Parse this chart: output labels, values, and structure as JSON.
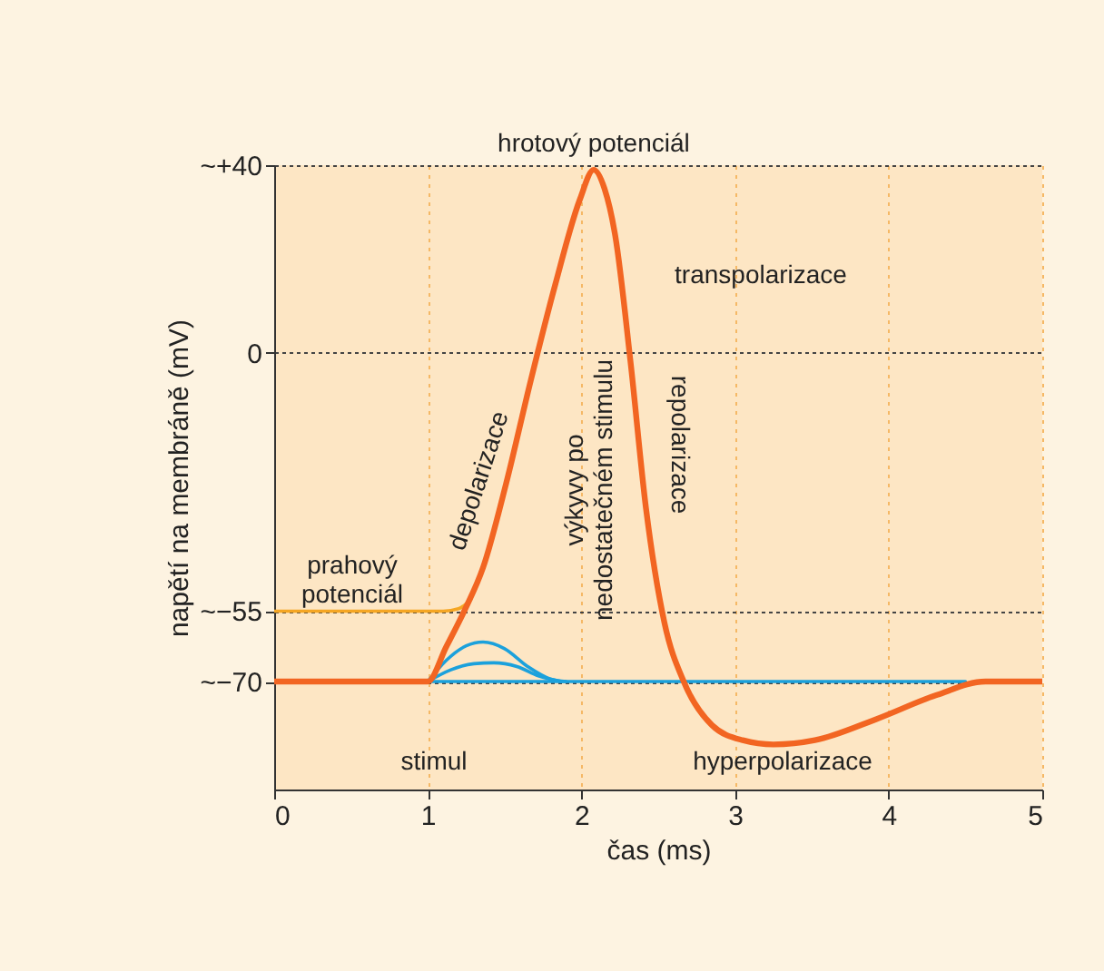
{
  "chart_data": {
    "type": "line",
    "xlabel": "čas (ms)",
    "ylabel": "napětí na membráně (mV)",
    "xlim": [
      0,
      5
    ],
    "xticks": [
      0,
      1,
      2,
      3,
      4,
      5
    ],
    "ylim": [
      -93,
      40
    ],
    "yticks": [
      {
        "value": -70,
        "label": "~−70"
      },
      {
        "value": -55,
        "label": "~−55"
      },
      0,
      {
        "value": 40,
        "label": "~+40"
      }
    ],
    "grid": true,
    "marker": "none",
    "line_style": "solid",
    "series": [
      {
        "color": "#1ba1dc",
        "x": [
          1,
          4.5
        ],
        "values": [
          -70,
          -70
        ]
      },
      {
        "color": "#1ba1dc",
        "x": [
          1,
          1.15,
          1.3,
          1.43,
          1.58,
          1.72,
          1.87
        ],
        "values": [
          -70,
          -67.5,
          -66.2,
          -66,
          -66.8,
          -68.8,
          -70
        ]
      },
      {
        "color": "#1ba1dc",
        "x": [
          1,
          1.12,
          1.25,
          1.36,
          1.5,
          1.65,
          1.8,
          1.9
        ],
        "values": [
          -70,
          -65.5,
          -62.4,
          -61.6,
          -63,
          -66.8,
          -69.5,
          -70
        ]
      },
      {
        "color": "#f5a623",
        "x": [
          0,
          1.1,
          1.2,
          1.28
        ],
        "values": [
          -55,
          -55,
          -54.5,
          -52.5
        ]
      },
      {
        "color": "#f26522",
        "x": [
          0,
          1,
          1.12,
          1.24,
          1.36,
          1.51,
          1.67,
          1.83,
          1.99,
          2.08,
          2.15,
          2.22,
          2.32,
          2.42,
          2.54,
          2.67,
          2.85,
          3.05,
          3.25,
          3.52,
          3.92,
          4.31,
          4.63,
          5
        ],
        "values": [
          -70,
          -70,
          -62.6,
          -54.8,
          -45.7,
          -27.8,
          -5.9,
          14.6,
          32.7,
          39,
          35,
          25,
          -2,
          -33,
          -57.4,
          -70.3,
          -79.3,
          -82.5,
          -83.4,
          -82.5,
          -78,
          -72.9,
          -70,
          -70
        ]
      }
    ],
    "annotations": [
      {
        "text": "hrotový potenciál",
        "x": 2.08,
        "y": 39
      },
      "transpolarizace",
      "depolarizace",
      "repolarizace",
      "výkyvy po\nnedostatečném stimulu",
      "prahový\npotenciál",
      "stimul",
      "hyperpolarizace"
    ]
  }
}
